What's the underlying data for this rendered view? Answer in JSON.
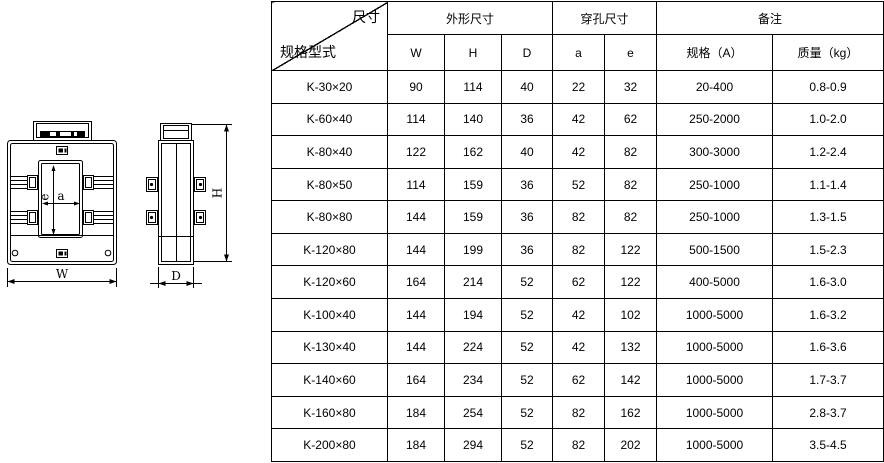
{
  "diagram": {
    "labels": {
      "overall_width": "W",
      "overall_height": "H",
      "depth": "D",
      "window_width": "a",
      "window_height": "e"
    }
  },
  "table": {
    "corner": {
      "top_right": "尺寸",
      "bottom_left": "规格型式"
    },
    "group_headers": [
      {
        "label": "外形尺寸"
      },
      {
        "label": "穿孔尺寸"
      },
      {
        "label": "备注"
      }
    ],
    "subheaders": [
      "W",
      "H",
      "D",
      "a",
      "e",
      "规格（A）",
      "质量（kg）"
    ],
    "rows": [
      [
        "K-30×20",
        "90",
        "114",
        "40",
        "22",
        "32",
        "20-400",
        "0.8-0.9"
      ],
      [
        "K-60×40",
        "114",
        "140",
        "36",
        "42",
        "62",
        "250-2000",
        "1.0-2.0"
      ],
      [
        "K-80×40",
        "122",
        "162",
        "40",
        "42",
        "82",
        "300-3000",
        "1.2-2.4"
      ],
      [
        "K-80×50",
        "114",
        "159",
        "36",
        "52",
        "82",
        "250-1000",
        "1.1-1.4"
      ],
      [
        "K-80×80",
        "144",
        "159",
        "36",
        "82",
        "82",
        "250-1000",
        "1.3-1.5"
      ],
      [
        "K-120×80",
        "144",
        "199",
        "36",
        "82",
        "122",
        "500-1500",
        "1.5-2.3"
      ],
      [
        "K-120×60",
        "164",
        "214",
        "52",
        "62",
        "122",
        "400-5000",
        "1.6-3.0"
      ],
      [
        "K-100×40",
        "144",
        "194",
        "52",
        "42",
        "102",
        "1000-5000",
        "1.6-3.2"
      ],
      [
        "K-130×40",
        "144",
        "224",
        "52",
        "42",
        "132",
        "1000-5000",
        "1.6-3.6"
      ],
      [
        "K-140×60",
        "164",
        "234",
        "52",
        "62",
        "142",
        "1000-5000",
        "1.7-3.7"
      ],
      [
        "K-160×80",
        "184",
        "254",
        "52",
        "82",
        "162",
        "1000-5000",
        "2.8-3.7"
      ],
      [
        "K-200×80",
        "184",
        "294",
        "52",
        "82",
        "202",
        "1000-5000",
        "3.5-4.5"
      ]
    ]
  },
  "colors": {
    "line": "#000000",
    "text": "#000000",
    "background": "#ffffff"
  }
}
